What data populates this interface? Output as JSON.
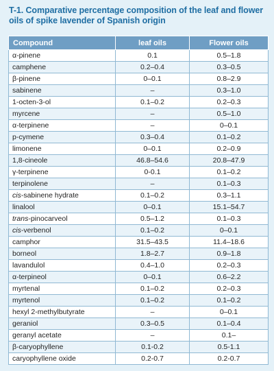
{
  "title": "T-1. Comparative percentage composition of the leaf and flower oils of spike lavender of Spanish origin",
  "table": {
    "headers": [
      "Compound",
      "leaf oils",
      "Flower oils"
    ],
    "rows": [
      {
        "prefix": "",
        "name": "α-pinene",
        "leaf": "0.1",
        "flower": "0.5–1.8"
      },
      {
        "prefix": "",
        "name": "camphene",
        "leaf": "0.2–0.4",
        "flower": "0.3–0.5"
      },
      {
        "prefix": "",
        "name": "β-pinene",
        "leaf": "0–0.1",
        "flower": "0.8–2.9"
      },
      {
        "prefix": "",
        "name": "sabinene",
        "leaf": "–",
        "flower": "0.3–1.0"
      },
      {
        "prefix": "",
        "name": "1-octen-3-ol",
        "leaf": "0.1–0.2",
        "flower": "0.2–0.3"
      },
      {
        "prefix": "",
        "name": "myrcene",
        "leaf": "–",
        "flower": "0.5–1.0"
      },
      {
        "prefix": "",
        "name": "α-terpinene",
        "leaf": "–",
        "flower": "0–0.1"
      },
      {
        "prefix": "",
        "name": "p-cymene",
        "leaf": "0.3–0.4",
        "flower": "0.1–0.2"
      },
      {
        "prefix": "",
        "name": "limonene",
        "leaf": "0–0.1",
        "flower": "0.2–0.9"
      },
      {
        "prefix": "",
        "name": "1,8-cineole",
        "leaf": "46.8–54.6",
        "flower": "20.8–47.9"
      },
      {
        "prefix": "",
        "name": "γ-terpinene",
        "leaf": "0-0.1",
        "flower": "0.1–0.2"
      },
      {
        "prefix": "",
        "name": "terpinolene",
        "leaf": "–",
        "flower": "0.1–0.3"
      },
      {
        "prefix": "cis",
        "name": "-sabinene hydrate",
        "leaf": "0.1–0.2",
        "flower": "0.3–1.1"
      },
      {
        "prefix": "",
        "name": "linalool",
        "leaf": "0–0.1",
        "flower": "15.1–54.7"
      },
      {
        "prefix": "trans",
        "name": "-pinocarveol",
        "leaf": "0.5–1.2",
        "flower": "0.1–0.3"
      },
      {
        "prefix": "cis",
        "name": "-verbenol",
        "leaf": "0.1–0.2",
        "flower": "0–0.1"
      },
      {
        "prefix": "",
        "name": "camphor",
        "leaf": "31.5–43.5",
        "flower": "11.4–18.6"
      },
      {
        "prefix": "",
        "name": "borneol",
        "leaf": "1.8–2.7",
        "flower": "0.9–1.8"
      },
      {
        "prefix": "",
        "name": "lavandulol",
        "leaf": "0.4–1.0",
        "flower": "0.2–0.3"
      },
      {
        "prefix": "",
        "name": "α-terpineol",
        "leaf": "0–0.1",
        "flower": "0.6–2.2"
      },
      {
        "prefix": "",
        "name": "myrtenal",
        "leaf": "0.1–0.2",
        "flower": "0.2–0.3"
      },
      {
        "prefix": "",
        "name": "myrtenol",
        "leaf": "0.1–0.2",
        "flower": "0.1–0.2"
      },
      {
        "prefix": "",
        "name": "hexyl 2-methylbutyrate",
        "leaf": "–",
        "flower": "0–0.1"
      },
      {
        "prefix": "",
        "name": "geraniol",
        "leaf": "0.3–0.5",
        "flower": "0.1–0.4"
      },
      {
        "prefix": "",
        "name": "geranyl acetate",
        "leaf": "–",
        "flower": "0.1–"
      },
      {
        "prefix": "",
        "name": "β-caryophyllene",
        "leaf": "0.1-0.2",
        "flower": "0.5-1.1"
      },
      {
        "prefix": "",
        "name": "caryophyllene oxide",
        "leaf": "0.2-0.7",
        "flower": "0.2-0.7"
      }
    ]
  },
  "colors": {
    "background": "#e4f1f8",
    "title": "#1f6ea3",
    "header_bg": "#6f9ec4",
    "row_alt": "#e9f3f9",
    "border": "#8fb8d3"
  }
}
